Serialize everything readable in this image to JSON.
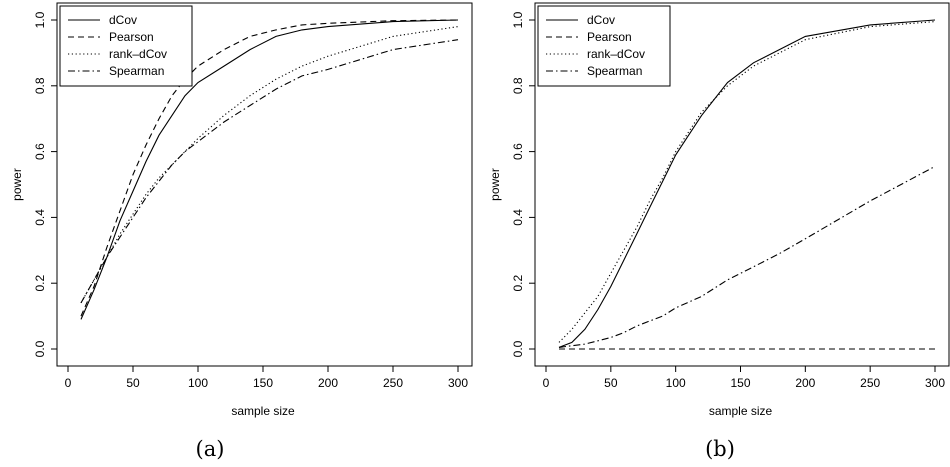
{
  "chart_data": [
    {
      "type": "line",
      "caption": "(a)",
      "xlabel": "sample size",
      "ylabel": "power",
      "xlim": [
        0,
        300
      ],
      "ylim": [
        0,
        1
      ],
      "xticks": [
        0,
        50,
        100,
        150,
        200,
        250,
        300
      ],
      "yticks": [
        0.0,
        0.2,
        0.4,
        0.6,
        0.8,
        1.0
      ],
      "ytick_labels": [
        "0.0",
        "0.2",
        "0.4",
        "0.6",
        "0.8",
        "1.0"
      ],
      "legend_position": "top-left",
      "x": [
        10,
        20,
        30,
        40,
        50,
        60,
        70,
        80,
        90,
        100,
        120,
        140,
        160,
        180,
        200,
        250,
        300
      ],
      "series": [
        {
          "name": "dCov",
          "style": "solid",
          "values": [
            0.09,
            0.18,
            0.28,
            0.39,
            0.48,
            0.57,
            0.65,
            0.71,
            0.77,
            0.81,
            0.86,
            0.91,
            0.95,
            0.97,
            0.98,
            0.995,
            1.0
          ]
        },
        {
          "name": "Pearson",
          "style": "dashed",
          "values": [
            0.1,
            0.19,
            0.31,
            0.42,
            0.53,
            0.62,
            0.7,
            0.77,
            0.82,
            0.86,
            0.91,
            0.95,
            0.97,
            0.985,
            0.99,
            0.998,
            1.0
          ]
        },
        {
          "name": "rank–dCov",
          "style": "dotted",
          "values": [
            0.14,
            0.21,
            0.28,
            0.35,
            0.41,
            0.47,
            0.52,
            0.56,
            0.6,
            0.64,
            0.71,
            0.77,
            0.82,
            0.86,
            0.89,
            0.95,
            0.98
          ]
        },
        {
          "name": "Spearman",
          "style": "dashdot",
          "values": [
            0.14,
            0.21,
            0.28,
            0.34,
            0.4,
            0.46,
            0.51,
            0.56,
            0.6,
            0.63,
            0.69,
            0.74,
            0.79,
            0.83,
            0.85,
            0.91,
            0.94
          ]
        }
      ]
    },
    {
      "type": "line",
      "caption": "(b)",
      "xlabel": "sample size",
      "ylabel": "power",
      "xlim": [
        0,
        300
      ],
      "ylim": [
        0,
        1
      ],
      "xticks": [
        0,
        50,
        100,
        150,
        200,
        250,
        300
      ],
      "yticks": [
        0.0,
        0.2,
        0.4,
        0.6,
        0.8,
        1.0
      ],
      "ytick_labels": [
        "0.0",
        "0.2",
        "0.4",
        "0.6",
        "0.8",
        "1.0"
      ],
      "legend_position": "top-left",
      "x": [
        10,
        20,
        30,
        40,
        50,
        60,
        70,
        80,
        90,
        100,
        120,
        140,
        160,
        180,
        200,
        250,
        300
      ],
      "series": [
        {
          "name": "dCov",
          "style": "solid",
          "values": [
            0.005,
            0.02,
            0.06,
            0.12,
            0.19,
            0.27,
            0.35,
            0.43,
            0.51,
            0.59,
            0.71,
            0.81,
            0.87,
            0.91,
            0.95,
            0.985,
            1.0
          ]
        },
        {
          "name": "Pearson",
          "style": "dashed",
          "values": [
            0.0,
            0.0,
            0.0,
            0.0,
            0.0,
            0.0,
            0.0,
            0.0,
            0.0,
            0.0,
            0.0,
            0.0,
            0.0,
            0.0,
            0.0,
            0.0,
            0.0
          ]
        },
        {
          "name": "rank–dCov",
          "style": "dotted",
          "values": [
            0.02,
            0.06,
            0.11,
            0.16,
            0.23,
            0.3,
            0.37,
            0.45,
            0.52,
            0.6,
            0.72,
            0.8,
            0.86,
            0.9,
            0.94,
            0.98,
            0.995
          ]
        },
        {
          "name": "Spearman",
          "style": "dashdot",
          "values": [
            0.005,
            0.01,
            0.015,
            0.025,
            0.035,
            0.05,
            0.07,
            0.085,
            0.1,
            0.125,
            0.16,
            0.21,
            0.25,
            0.29,
            0.335,
            0.45,
            0.555
          ]
        }
      ]
    }
  ]
}
